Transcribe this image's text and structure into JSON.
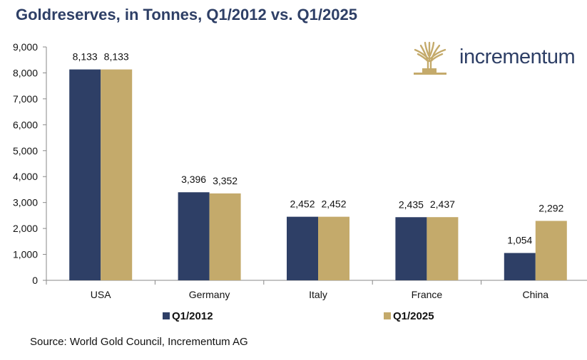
{
  "title": "Goldreserves, in Tonnes, Q1/2012 vs. Q1/2025",
  "source": "Source: World Gold Council, Incrementum AG",
  "logo": {
    "text": "incrementum",
    "icon": "tree-logo-icon",
    "colors": {
      "icon": "#c4aa6b",
      "text": "#2e3f66"
    }
  },
  "chart_data": {
    "type": "bar",
    "title": "Goldreserves, in Tonnes, Q1/2012 vs. Q1/2025",
    "categories": [
      "USA",
      "Germany",
      "Italy",
      "France",
      "China"
    ],
    "series": [
      {
        "name": "Q1/2012",
        "color": "#2e3f66",
        "values": [
          8133,
          3396,
          2452,
          2435,
          1054
        ],
        "labels": [
          "8,133",
          "3,396",
          "2,452",
          "2,435",
          "1,054"
        ]
      },
      {
        "name": "Q1/2025",
        "color": "#c4aa6b",
        "values": [
          8133,
          3352,
          2452,
          2437,
          2292
        ],
        "labels": [
          "8,133",
          "3,352",
          "2,452",
          "2,437",
          "2,292"
        ]
      }
    ],
    "ylim": [
      0,
      9000
    ],
    "yticks": [
      0,
      1000,
      2000,
      3000,
      4000,
      5000,
      6000,
      7000,
      8000,
      9000
    ],
    "ytick_labels": [
      "0",
      "1,000",
      "2,000",
      "3,000",
      "4,000",
      "5,000",
      "6,000",
      "7,000",
      "8,000",
      "9,000"
    ],
    "xlabel": "",
    "ylabel": "",
    "grid": false,
    "legend": "bottom"
  }
}
